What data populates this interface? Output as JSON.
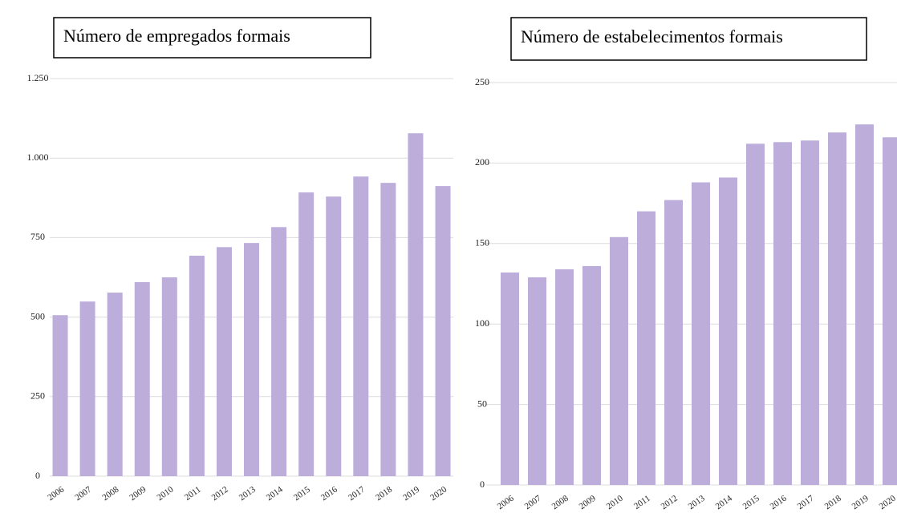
{
  "chart_data": [
    {
      "type": "bar",
      "title": "Número de empregados formais",
      "categories": [
        "2006",
        "2007",
        "2008",
        "2009",
        "2010",
        "2011",
        "2012",
        "2013",
        "2014",
        "2015",
        "2016",
        "2017",
        "2018",
        "2019",
        "2020"
      ],
      "values": [
        506,
        549,
        577,
        610,
        625,
        693,
        720,
        733,
        783,
        892,
        879,
        942,
        922,
        1078,
        912
      ],
      "color": "#bcaddb",
      "ylim": [
        0,
        1250
      ],
      "yticks": [
        0,
        250,
        500,
        750,
        {
          "value": 1000,
          "label": "1.000"
        },
        {
          "value": 1250,
          "label": "1.250"
        }
      ],
      "grid": true
    },
    {
      "type": "bar",
      "title": "Número de estabelecimentos formais",
      "categories": [
        "2006",
        "2007",
        "2008",
        "2009",
        "2010",
        "2011",
        "2012",
        "2013",
        "2014",
        "2015",
        "2016",
        "2017",
        "2018",
        "2019",
        "2020"
      ],
      "values": [
        132,
        129,
        134,
        136,
        154,
        170,
        177,
        188,
        191,
        212,
        213,
        214,
        219,
        224,
        216
      ],
      "color": "#bcaddb",
      "ylim": [
        0,
        250
      ],
      "yticks": [
        0,
        50,
        100,
        150,
        200,
        250
      ],
      "grid": true
    }
  ]
}
